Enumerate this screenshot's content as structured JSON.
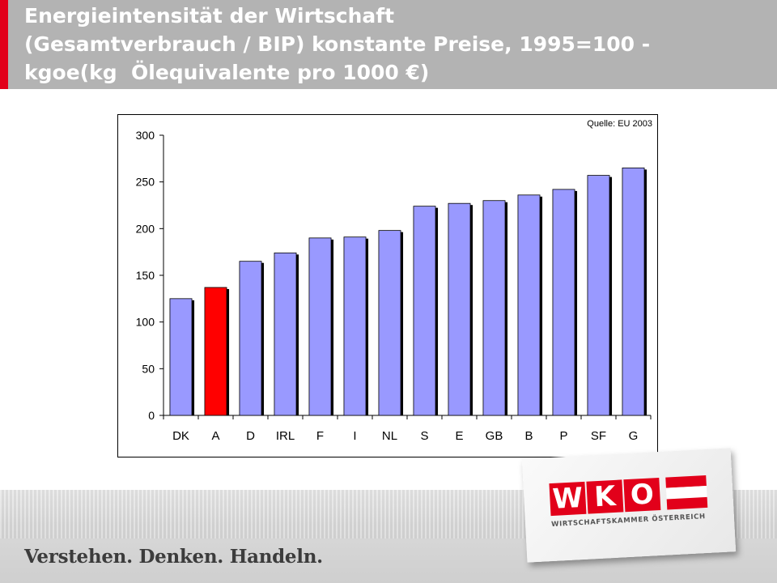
{
  "header": {
    "title_lines": [
      "Energieintensität der Wirtschaft",
      "(Gesamtverbrauch / BIP) konstante Preise, 1995=100 -",
      "kgoe(kg  Ölequivalente pro 1000 €)"
    ]
  },
  "chart_data": {
    "type": "bar",
    "categories": [
      "DK",
      "A",
      "D",
      "IRL",
      "F",
      "I",
      "NL",
      "S",
      "E",
      "GB",
      "B",
      "P",
      "SF",
      "G"
    ],
    "values": [
      125,
      137,
      165,
      174,
      190,
      191,
      198,
      224,
      227,
      230,
      236,
      242,
      257,
      265
    ],
    "highlight_index": 1,
    "colors": {
      "bar": "#9999ff",
      "highlight": "#ff0000",
      "shadow": "#000000"
    },
    "ylim": [
      0,
      300
    ],
    "yticks": [
      0,
      50,
      100,
      150,
      200,
      250,
      300
    ],
    "source_note": "Quelle: EU 2003",
    "xlabel": "",
    "ylabel": "",
    "grid": false
  },
  "footer": {
    "slogan": "Verstehen. Denken. Handeln."
  },
  "logo": {
    "letters": [
      "W",
      "K",
      "O"
    ],
    "subtitle": "WIRTSCHAFTSKAMMER ÖSTERREICH",
    "brand_color": "#e2001a"
  }
}
